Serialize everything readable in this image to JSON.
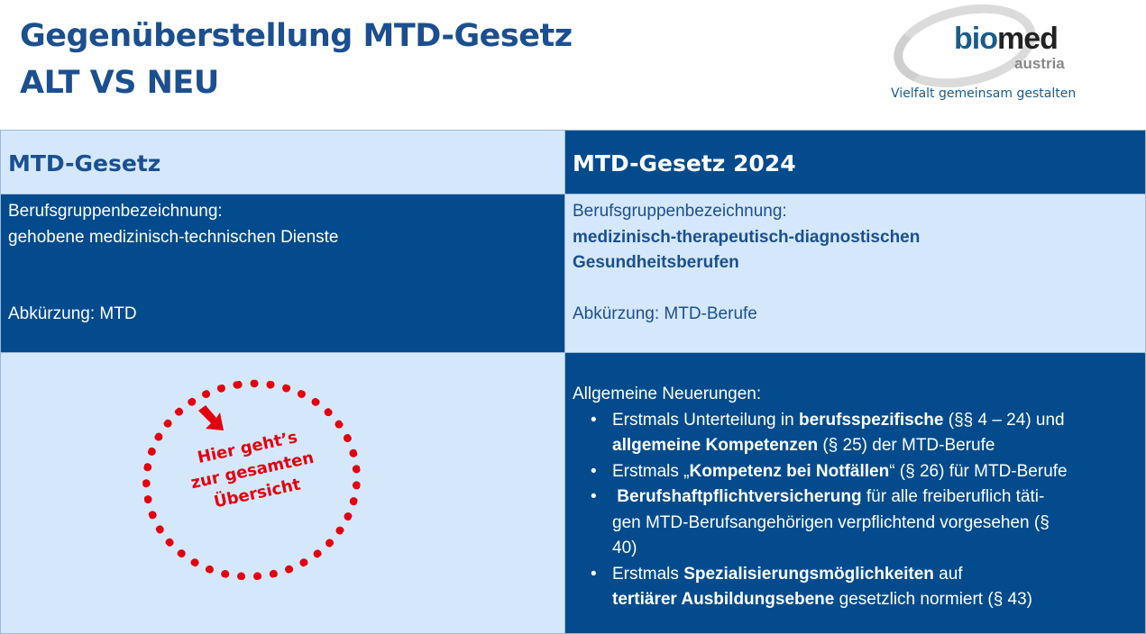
{
  "header": {
    "title_line1": "Gegenüberstellung MTD-Gesetz",
    "title_line2": "ALT VS NEU"
  },
  "logo": {
    "text_bio": "bio",
    "text_med": "med",
    "text_austria": "austria",
    "slogan": "Vielfalt gemeinsam gestalten"
  },
  "colors": {
    "dark_blue": "#034b8c",
    "light_blue": "#d5e8fb",
    "title_blue": "#1b4f8f",
    "stamp_red": "#e3000f"
  },
  "left": {
    "heading": "MTD-Gesetz",
    "label": "Berufsgruppenbezeichnung:",
    "name": "gehobene medizinisch-technischen Dienste",
    "abbr": "Abkürzung: MTD",
    "stamp": {
      "line1": "Hier geht’s",
      "line2": "zur gesamten",
      "line3": "Übersicht",
      "icon": "arrow-down-right-icon"
    }
  },
  "right": {
    "heading": "MTD-Gesetz 2024",
    "label": "Berufsgruppenbezeichnung:",
    "name_line1": "medizinisch-therapeutisch-diagnostischen",
    "name_line2": "Gesundheitsberufen",
    "abbr": "Abkürzung: MTD-Berufe",
    "news_title": "Allgemeine Neuerungen:",
    "bullets": [
      {
        "a": "Erstmals Unterteilung in ",
        "b": "berufsspezifische",
        "c": " (§§ 4 – 24) und",
        "d": "allgemeine Kompetenzen",
        "e": " (§ 25) der MTD-Berufe"
      },
      {
        "a": "Erstmals „",
        "b": "Kompetenz bei Notfällen",
        "c": "“ (§ 26) für MTD-Berufe"
      },
      {
        "b": "Berufshaftpflichtversicherung",
        "c": " für alle freiberuflich täti-",
        "d": "gen MTD-Berufsangehörigen verpflichtend vorgesehen (§",
        "e": "40)"
      },
      {
        "a": "Erstmals ",
        "b": "Spezialisierungsmöglichkeiten",
        "c": " auf",
        "d": "tertiärer Ausbildungsebene",
        "e": " gesetzlich normiert (§ 43)"
      }
    ]
  }
}
